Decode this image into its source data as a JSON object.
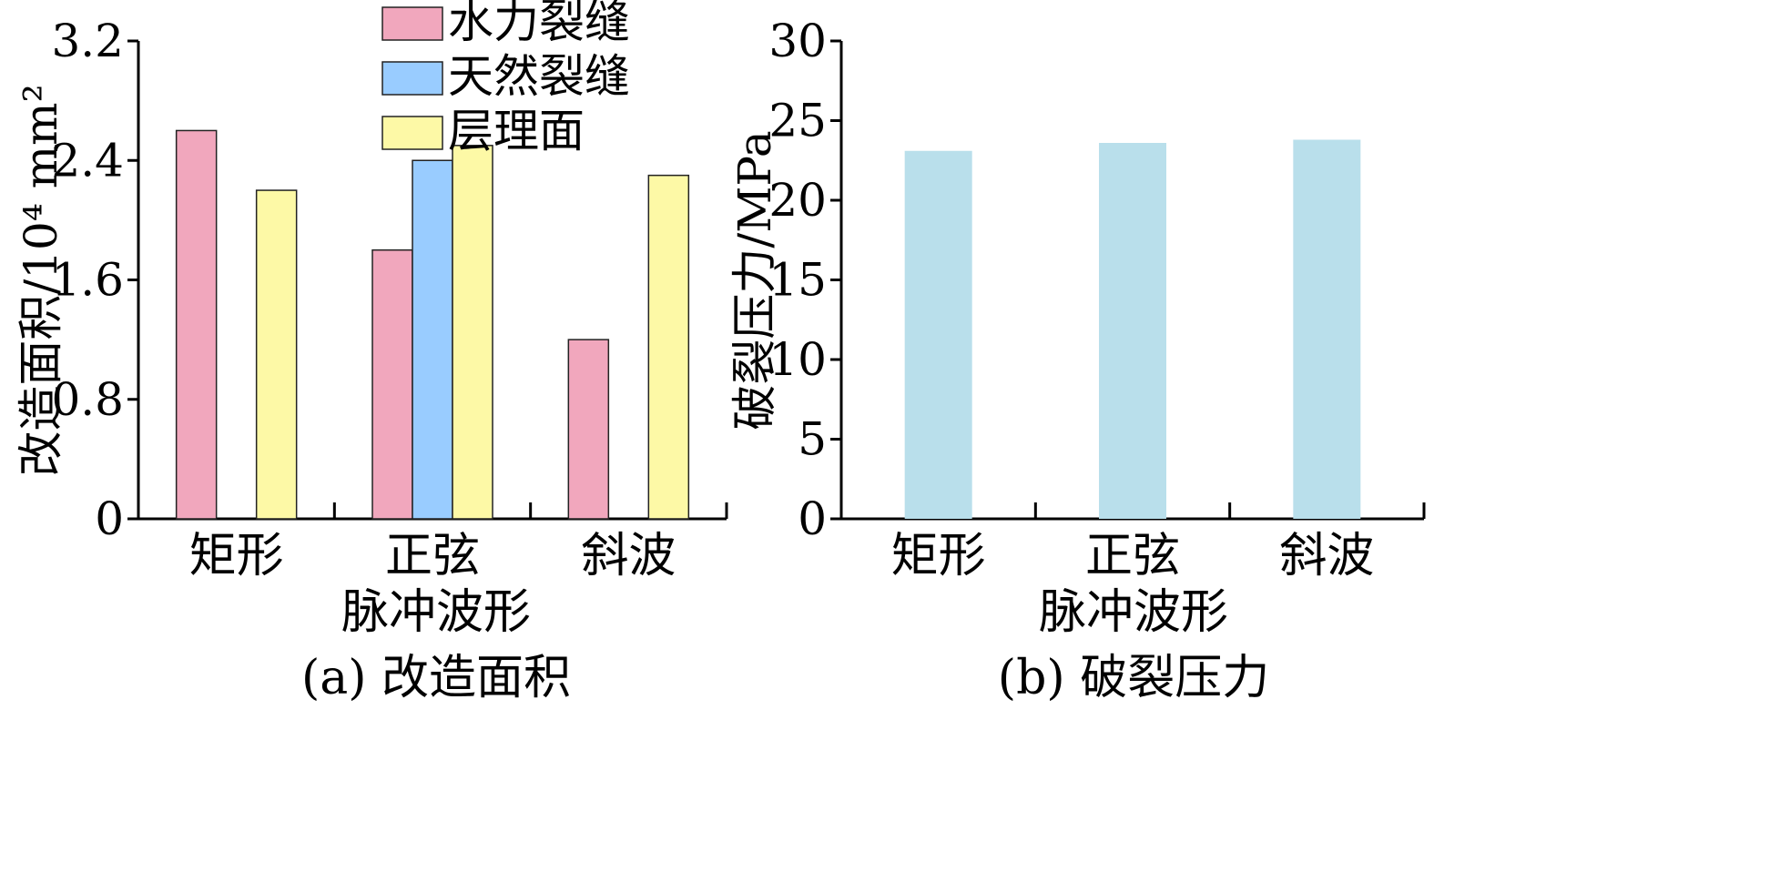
{
  "chart_data": [
    {
      "type": "bar",
      "panel": "a",
      "caption": "(a) 改造面积",
      "xlabel": "脉冲波形",
      "ylabel": "改造面积/10⁴ mm²",
      "categories": [
        "矩形",
        "正弦",
        "斜波"
      ],
      "ylim": [
        0,
        3.2
      ],
      "yticks": [
        "0",
        "0.8",
        "1.6",
        "2.4",
        "3.2"
      ],
      "legend_position": "top-center",
      "grid": false,
      "series": [
        {
          "name": "水力裂缝",
          "color": "#f1a7bd",
          "values": [
            2.6,
            1.8,
            1.2
          ]
        },
        {
          "name": "天然裂缝",
          "color": "#99ccff",
          "values": [
            null,
            2.4,
            null
          ]
        },
        {
          "name": "层理面",
          "color": "#fdf9a6",
          "values": [
            2.2,
            2.5,
            2.3
          ]
        }
      ]
    },
    {
      "type": "bar",
      "panel": "b",
      "caption": "(b) 破裂压力",
      "xlabel": "脉冲波形",
      "ylabel": "破裂压力/MPa",
      "categories": [
        "矩形",
        "正弦",
        "斜波"
      ],
      "ylim": [
        0,
        30
      ],
      "yticks": [
        "0",
        "5",
        "10",
        "15",
        "20",
        "25",
        "30"
      ],
      "grid": false,
      "series": [
        {
          "color": "#b9dfeb",
          "values": [
            23.1,
            23.6,
            23.8
          ]
        }
      ]
    }
  ]
}
